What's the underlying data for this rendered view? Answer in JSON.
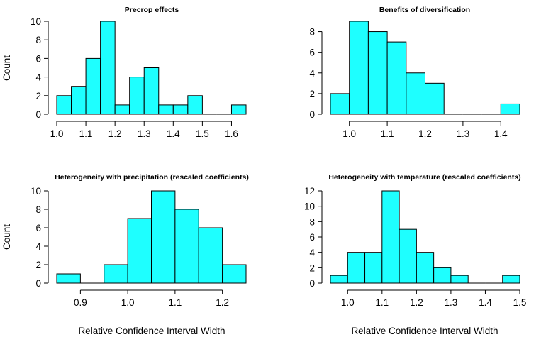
{
  "shared": {
    "ylabel": "Count",
    "xlabel": "Relative Confidence Interval Width",
    "bar_color": "#1EFFFF",
    "edge_color": "#000000"
  },
  "chart_data": [
    {
      "type": "bar",
      "title": "Precrop effects",
      "ylabel": "Count",
      "bin_width": 0.05,
      "bin_starts": [
        1.0,
        1.05,
        1.1,
        1.15,
        1.2,
        1.25,
        1.3,
        1.35,
        1.4,
        1.45,
        1.5,
        1.55,
        1.6
      ],
      "values": [
        2,
        3,
        6,
        10,
        1,
        4,
        5,
        1,
        1,
        2,
        0,
        0,
        1
      ],
      "xlim": [
        1.0,
        1.65
      ],
      "ylim": [
        0,
        10
      ],
      "xticks": [
        "1.0",
        "1.1",
        "1.2",
        "1.3",
        "1.4",
        "1.5",
        "1.6"
      ],
      "yticks": [
        "0",
        "2",
        "4",
        "6",
        "8",
        "10"
      ]
    },
    {
      "type": "bar",
      "title": "Benefits of diversification",
      "ylabel": "",
      "bin_width": 0.05,
      "bin_starts": [
        0.95,
        1.0,
        1.05,
        1.1,
        1.15,
        1.2,
        1.25,
        1.3,
        1.35,
        1.4
      ],
      "values": [
        2,
        9,
        8,
        7,
        4,
        3,
        0,
        0,
        0,
        1
      ],
      "xlim": [
        0.95,
        1.45
      ],
      "ylim": [
        0,
        9
      ],
      "xticks": [
        "1.0",
        "1.1",
        "1.2",
        "1.3",
        "1.4"
      ],
      "yticks": [
        "0",
        "2",
        "4",
        "6",
        "8"
      ]
    },
    {
      "type": "bar",
      "title": "Heterogeneity with precipitation (rescaled coefficients)",
      "ylabel": "Count",
      "xlabel": "Relative Confidence Interval Width",
      "bin_width": 0.05,
      "bin_starts": [
        0.85,
        0.9,
        0.95,
        1.0,
        1.05,
        1.1,
        1.15,
        1.2
      ],
      "values": [
        1,
        0,
        2,
        7,
        10,
        8,
        6,
        2
      ],
      "xlim": [
        0.85,
        1.25
      ],
      "ylim": [
        0,
        10
      ],
      "xticks": [
        "0.9",
        "1.0",
        "1.1",
        "1.2"
      ],
      "yticks": [
        "0",
        "2",
        "4",
        "6",
        "8",
        "10"
      ]
    },
    {
      "type": "bar",
      "title": "Heterogeneity with temperature (rescaled coefficients)",
      "ylabel": "",
      "xlabel": "Relative Confidence Interval Width",
      "bin_width": 0.05,
      "bin_starts": [
        0.95,
        1.0,
        1.05,
        1.1,
        1.15,
        1.2,
        1.25,
        1.3,
        1.35,
        1.4,
        1.45
      ],
      "values": [
        1,
        4,
        4,
        12,
        7,
        4,
        2,
        1,
        0,
        0,
        1
      ],
      "xlim": [
        0.95,
        1.5
      ],
      "ylim": [
        0,
        12
      ],
      "xticks": [
        "1.0",
        "1.1",
        "1.2",
        "1.3",
        "1.4",
        "1.5"
      ],
      "yticks": [
        "0",
        "2",
        "4",
        "6",
        "8",
        "10",
        "12"
      ]
    }
  ]
}
